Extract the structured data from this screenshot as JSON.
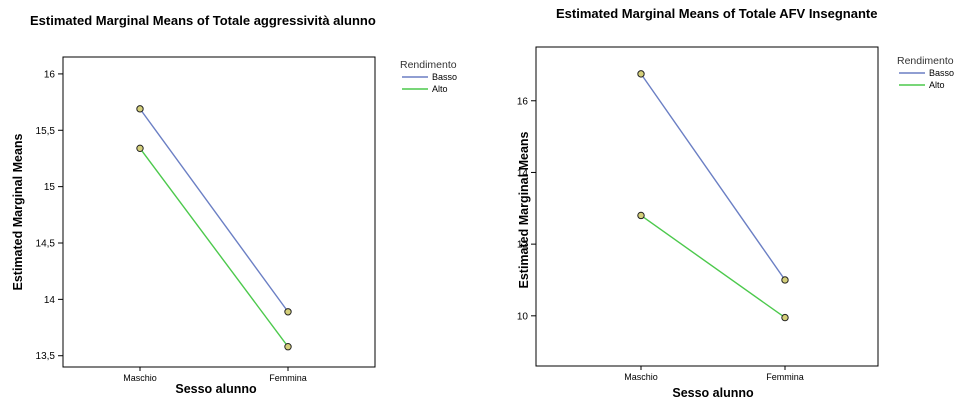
{
  "chart_data": [
    {
      "type": "line",
      "title": "Estimated Marginal Means of Totale aggressività alunno",
      "xlabel": "Sesso alunno",
      "ylabel": "Estimated Marginal Means",
      "categories": [
        "Maschio",
        "Femmina"
      ],
      "ylim": [
        13.4,
        16.15
      ],
      "yticks": [
        13.5,
        14,
        14.5,
        15,
        15.5,
        16
      ],
      "ytick_labels": [
        "13,5",
        "14",
        "14,5",
        "15",
        "15,5",
        "16"
      ],
      "legend_title": "Rendimento",
      "legend_position": "right",
      "series": [
        {
          "name": "Basso",
          "color": "#6b7fc4",
          "values": [
            15.69,
            13.89
          ]
        },
        {
          "name": "Alto",
          "color": "#4cc94c",
          "values": [
            15.34,
            13.58
          ]
        }
      ]
    },
    {
      "type": "line",
      "title": "Estimated Marginal Means of Totale AFV Insegnante",
      "xlabel": "Sesso alunno",
      "ylabel": "Estimated Marginal Means",
      "categories": [
        "Maschio",
        "Femmina"
      ],
      "ylim": [
        8.6,
        17.5
      ],
      "yticks": [
        10,
        12,
        14,
        16
      ],
      "ytick_labels": [
        "10",
        "12",
        "14",
        "16"
      ],
      "legend_title": "Rendimento",
      "legend_position": "right",
      "series": [
        {
          "name": "Basso",
          "color": "#6b7fc4",
          "values": [
            16.75,
            11.0
          ]
        },
        {
          "name": "Alto",
          "color": "#4cc94c",
          "values": [
            12.8,
            9.95
          ]
        }
      ]
    }
  ],
  "marker_fill": "#d4cf7a"
}
